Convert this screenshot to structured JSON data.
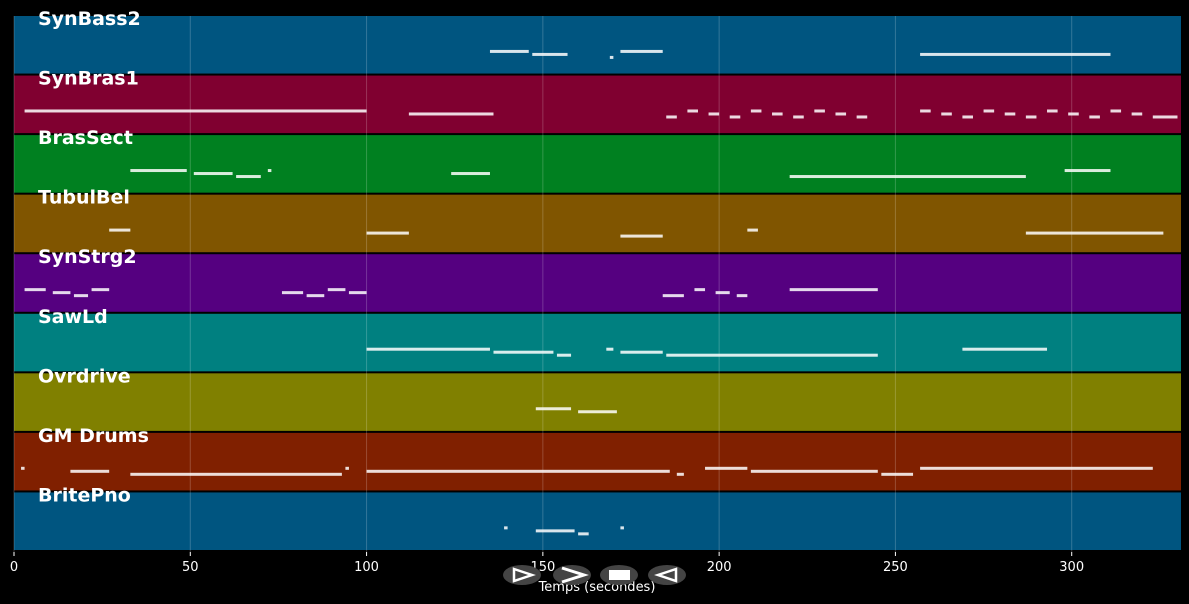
{
  "chart_data": {
    "type": "timeline",
    "xlabel": "Temps (secondes)",
    "xlim": [
      0,
      331
    ],
    "xticks": [
      0,
      50,
      100,
      150,
      200,
      250,
      300
    ],
    "grid": true,
    "tracks": [
      {
        "name": "SynBass2",
        "color": "#005580",
        "segments": [
          [
            135,
            146
          ],
          [
            147,
            157
          ],
          [
            169,
            170
          ],
          [
            172,
            184
          ],
          [
            257,
            311
          ]
        ]
      },
      {
        "name": "SynBras1",
        "color": "#800030",
        "segments": [
          [
            3,
            100
          ],
          [
            112,
            136
          ],
          [
            185,
            188
          ],
          [
            191,
            194
          ],
          [
            197,
            200
          ],
          [
            203,
            206
          ],
          [
            209,
            212
          ],
          [
            215,
            218
          ],
          [
            221,
            224
          ],
          [
            227,
            230
          ],
          [
            233,
            236
          ],
          [
            239,
            242
          ],
          [
            257,
            260
          ],
          [
            263,
            266
          ],
          [
            269,
            272
          ],
          [
            275,
            278
          ],
          [
            281,
            284
          ],
          [
            287,
            290
          ],
          [
            293,
            296
          ],
          [
            299,
            302
          ],
          [
            305,
            308
          ],
          [
            311,
            314
          ],
          [
            317,
            320
          ],
          [
            323,
            330
          ]
        ]
      },
      {
        "name": "BrasSect",
        "color": "#008020",
        "segments": [
          [
            33,
            49
          ],
          [
            51,
            62
          ],
          [
            63,
            70
          ],
          [
            72,
            73
          ],
          [
            124,
            135
          ],
          [
            220,
            287
          ],
          [
            298,
            311
          ]
        ]
      },
      {
        "name": "TubulBel",
        "color": "#805500",
        "segments": [
          [
            27,
            33
          ],
          [
            100,
            112
          ],
          [
            172,
            184
          ],
          [
            208,
            211
          ],
          [
            287,
            326
          ]
        ]
      },
      {
        "name": "SynStrg2",
        "color": "#550080",
        "segments": [
          [
            3,
            9
          ],
          [
            11,
            16
          ],
          [
            17,
            21
          ],
          [
            22,
            27
          ],
          [
            76,
            82
          ],
          [
            83,
            88
          ],
          [
            89,
            94
          ],
          [
            95,
            100
          ],
          [
            184,
            190
          ],
          [
            193,
            196
          ],
          [
            199,
            203
          ],
          [
            205,
            208
          ],
          [
            220,
            245
          ]
        ]
      },
      {
        "name": "SawLd",
        "color": "#008080",
        "segments": [
          [
            100,
            135
          ],
          [
            136,
            153
          ],
          [
            154,
            158
          ],
          [
            168,
            170
          ],
          [
            172,
            184
          ],
          [
            185,
            245
          ],
          [
            269,
            293
          ]
        ]
      },
      {
        "name": "Ovrdrive",
        "color": "#808000",
        "segments": [
          [
            148,
            158
          ],
          [
            160,
            171
          ]
        ]
      },
      {
        "name": "GM Drums",
        "color": "#802000",
        "segments": [
          [
            2,
            3
          ],
          [
            16,
            27
          ],
          [
            33,
            93
          ],
          [
            94,
            95
          ],
          [
            100,
            186
          ],
          [
            188,
            190
          ],
          [
            196,
            208
          ],
          [
            209,
            245
          ],
          [
            246,
            255
          ],
          [
            257,
            323
          ]
        ]
      },
      {
        "name": "BritePno",
        "color": "#005580",
        "segments": [
          [
            139,
            140
          ],
          [
            148,
            159
          ],
          [
            160,
            163
          ],
          [
            172,
            173
          ]
        ]
      }
    ]
  }
}
